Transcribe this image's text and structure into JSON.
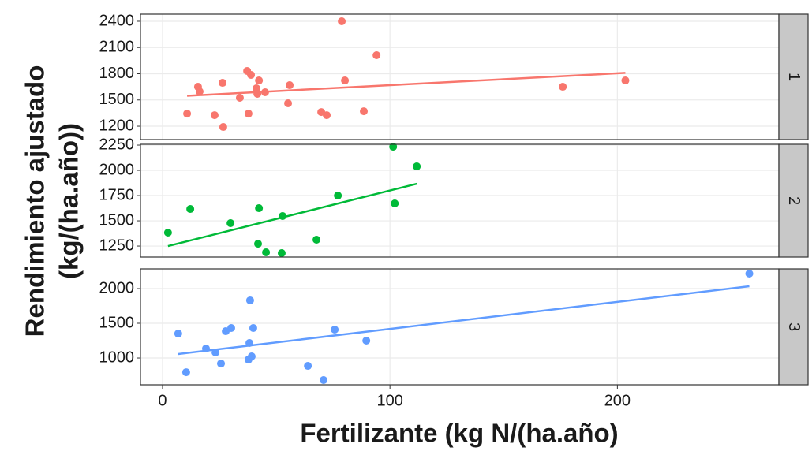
{
  "chart_data": {
    "type": "scatter",
    "xlabel": "Fertilizante (kg N/(ha.año)",
    "ylabel": [
      "Rendimiento ajustado",
      "(kg/(ha.año))"
    ],
    "xlim": [
      -9.7,
      271
    ],
    "xticks": [
      0,
      100,
      200
    ],
    "grid": true,
    "facets": [
      {
        "label": "1",
        "color": "#f8766d",
        "x": [
          78.8,
          94.1,
          10.8,
          15.6,
          16.3,
          22.9,
          26.4,
          26.7,
          34.0,
          37.2,
          37.8,
          38.9,
          42.4,
          41.3,
          41.7,
          45.1,
          55.9,
          55.2,
          69.8,
          72.2,
          80.2,
          88.5,
          176,
          203.5
        ],
        "values": [
          2400,
          2012,
          1344,
          1651,
          1597,
          1326,
          1696,
          1191,
          1525,
          1832,
          1344,
          1787,
          1723,
          1633,
          1570,
          1588,
          1669,
          1462,
          1362,
          1326,
          1723,
          1371,
          1651,
          1723
        ],
        "ylim": [
          1047,
          2481
        ],
        "yticks": [
          1200,
          1500,
          1800,
          2100,
          2400
        ],
        "fit": {
          "x": [
            10.8,
            203.5
          ],
          "values": [
            1548,
            1810
          ]
        }
      },
      {
        "label": "2",
        "color": "#00ba38",
        "x": [
          2.4,
          12.2,
          29.9,
          42.4,
          42.0,
          45.5,
          52.8,
          52.4,
          67.7,
          77.1,
          101.4,
          102.1,
          111.8
        ],
        "values": [
          1383,
          1617,
          1477,
          1625,
          1273,
          1188,
          1547,
          1180,
          1313,
          1750,
          2234,
          1672,
          2039
        ],
        "ylim": [
          1141,
          2258
        ],
        "yticks": [
          1250,
          1500,
          1750,
          2000,
          2250
        ],
        "fit": {
          "x": [
            2.4,
            111.8
          ],
          "values": [
            1250,
            1867
          ]
        }
      },
      {
        "label": "3",
        "color": "#619cff",
        "x": [
          258,
          6.9,
          10.4,
          19.1,
          23.3,
          25.7,
          27.8,
          30.2,
          38.2,
          38.5,
          37.8,
          39.2,
          39.9,
          63.9,
          70.8,
          75.7,
          89.6
        ],
        "values": [
          2216,
          1352,
          795,
          1136,
          1080,
          920,
          1386,
          1432,
          1216,
          1830,
          977,
          1023,
          1432,
          886,
          682,
          1409,
          1250
        ],
        "ylim": [
          614,
          2284
        ],
        "yticks": [
          1000,
          1500,
          2000
        ],
        "fit": {
          "x": [
            6.9,
            258
          ],
          "values": [
            1057,
            2034
          ]
        }
      }
    ]
  }
}
